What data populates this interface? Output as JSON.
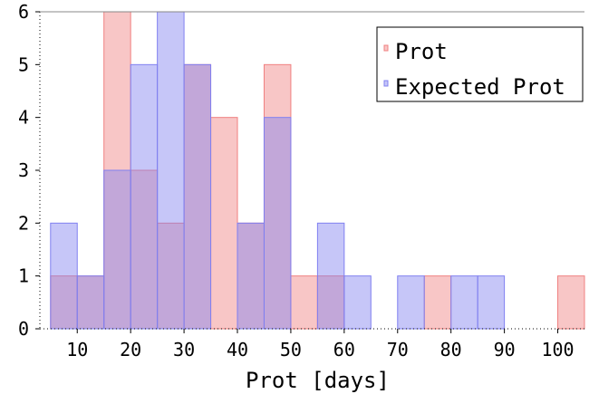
{
  "chart_data": {
    "type": "bar",
    "xlabel": "Prot [days]",
    "ylabel": "",
    "xlim": [
      3,
      105
    ],
    "ylim": [
      0,
      6
    ],
    "xticks": [
      10,
      20,
      30,
      40,
      50,
      60,
      70,
      80,
      90,
      100
    ],
    "yticks": [
      0,
      1,
      2,
      3,
      4,
      5,
      6
    ],
    "bin_edges": [
      5,
      10,
      15,
      20,
      25,
      30,
      35,
      40,
      45,
      50,
      55,
      60,
      65,
      70,
      75,
      80,
      85,
      90,
      95,
      100,
      105
    ],
    "legend_position": "top-right",
    "series": [
      {
        "name": "Prot",
        "color": "#f08080",
        "values": [
          1,
          1,
          6,
          3,
          2,
          5,
          4,
          2,
          5,
          1,
          1,
          0,
          0,
          0,
          1,
          0,
          0,
          0,
          0,
          1
        ]
      },
      {
        "name": "Expected Prot",
        "color": "#8080f0",
        "values": [
          2,
          1,
          3,
          5,
          6,
          5,
          0,
          2,
          4,
          0,
          2,
          1,
          0,
          1,
          0,
          1,
          1,
          0,
          0,
          0
        ]
      }
    ]
  }
}
